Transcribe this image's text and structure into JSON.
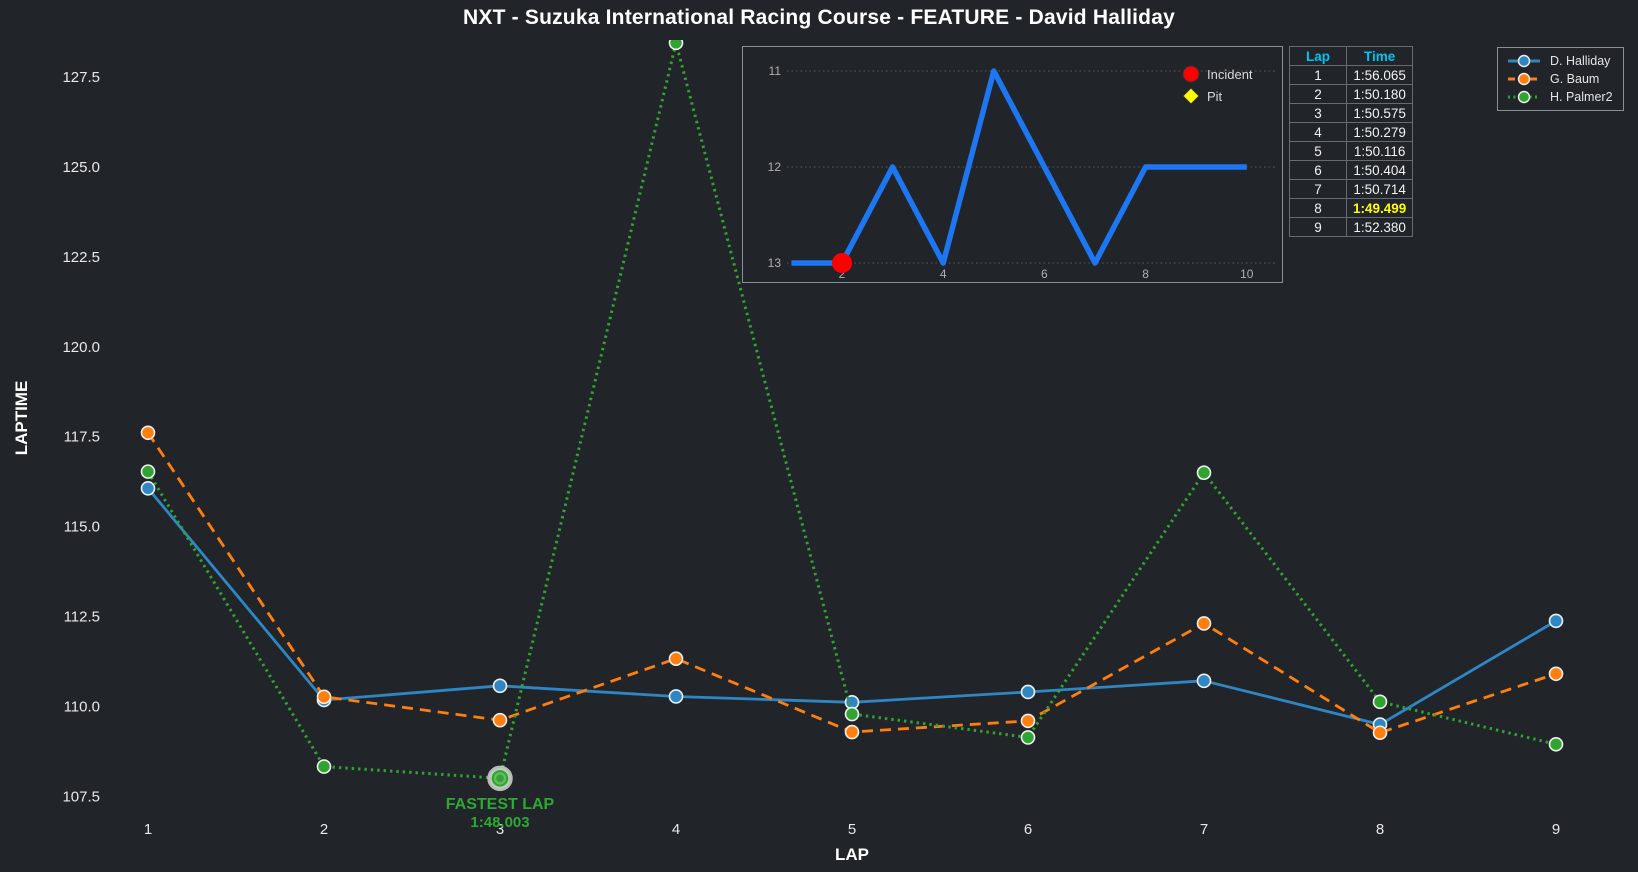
{
  "title": "NXT - Suzuka International Racing Course - FEATURE - David Halliday",
  "colors": {
    "background": "#212529",
    "halliday_blue": "#2f86c4",
    "baum_orange": "#ff7f0e",
    "palmer_green": "#31a331",
    "inset_line_blue": "#1d76f2",
    "incident_red": "#ff0000",
    "pit_yellow": "#ffff00",
    "table_header_cyan": "#00c3f5",
    "fastest_time_yellow": "#ffff00",
    "annotation_green": "#2da832",
    "marker_edge": "#f0f0f0"
  },
  "chart_data": [
    {
      "id": "main-laptime-chart",
      "type": "line",
      "xlabel": "LAP",
      "ylabel": "LAPTIME",
      "x": [
        1,
        2,
        3,
        4,
        5,
        6,
        7,
        8,
        9
      ],
      "yticks": [
        107.5,
        110.0,
        112.5,
        115.0,
        117.5,
        120.0,
        122.5,
        125.0,
        127.5
      ],
      "ylim": [
        107.0,
        128.6
      ],
      "grid": false,
      "legend_position": "top-right",
      "series": [
        {
          "name": "D. Halliday",
          "color": "#2f86c4",
          "line_style": "solid",
          "values": [
            116.065,
            110.18,
            110.575,
            110.279,
            110.116,
            110.404,
            110.714,
            109.499,
            112.38
          ]
        },
        {
          "name": "G. Baum",
          "color": "#ff7f0e",
          "line_style": "dashed",
          "values": [
            117.61,
            110.27,
            109.62,
            111.33,
            109.29,
            109.6,
            112.31,
            109.27,
            110.91
          ]
        },
        {
          "name": "H. Palmer2",
          "color": "#31a331",
          "line_style": "dotted",
          "values": [
            116.53,
            108.33,
            108.003,
            128.45,
            109.79,
            109.14,
            116.5,
            110.13,
            108.95
          ]
        }
      ],
      "annotation": {
        "label": "FASTEST LAP",
        "value": "1:48.003",
        "series": "H. Palmer2",
        "lap": 3
      }
    },
    {
      "id": "position-inset-chart",
      "type": "line",
      "x": [
        1,
        2,
        3,
        4,
        5,
        6,
        7,
        8,
        9,
        10
      ],
      "values": [
        13,
        13,
        12,
        13,
        11,
        12,
        13,
        12,
        12,
        12
      ],
      "yticks": [
        11,
        12,
        13
      ],
      "xticks": [
        2,
        4,
        6,
        8,
        10
      ],
      "y_inverted": true,
      "grid": true,
      "incidents": [
        {
          "lap": 2,
          "position": 13
        }
      ],
      "pits": [],
      "legend": [
        {
          "label": "Incident",
          "marker": "red-circle"
        },
        {
          "label": "Pit",
          "marker": "yellow-diamond"
        }
      ]
    }
  ],
  "lap_table": {
    "headers": [
      "Lap",
      "Time"
    ],
    "rows": [
      {
        "lap": "1",
        "time": "1:56.065",
        "fastest": false
      },
      {
        "lap": "2",
        "time": "1:50.180",
        "fastest": false
      },
      {
        "lap": "3",
        "time": "1:50.575",
        "fastest": false
      },
      {
        "lap": "4",
        "time": "1:50.279",
        "fastest": false
      },
      {
        "lap": "5",
        "time": "1:50.116",
        "fastest": false
      },
      {
        "lap": "6",
        "time": "1:50.404",
        "fastest": false
      },
      {
        "lap": "7",
        "time": "1:50.714",
        "fastest": false
      },
      {
        "lap": "8",
        "time": "1:49.499",
        "fastest": true
      },
      {
        "lap": "9",
        "time": "1:52.380",
        "fastest": false
      }
    ]
  },
  "legend": {
    "items": [
      {
        "label": "D. Halliday",
        "color": "#2f86c4",
        "line_style": "solid"
      },
      {
        "label": "G. Baum",
        "color": "#ff7f0e",
        "line_style": "dashed"
      },
      {
        "label": "H. Palmer2",
        "color": "#31a331",
        "line_style": "dotted"
      }
    ]
  }
}
